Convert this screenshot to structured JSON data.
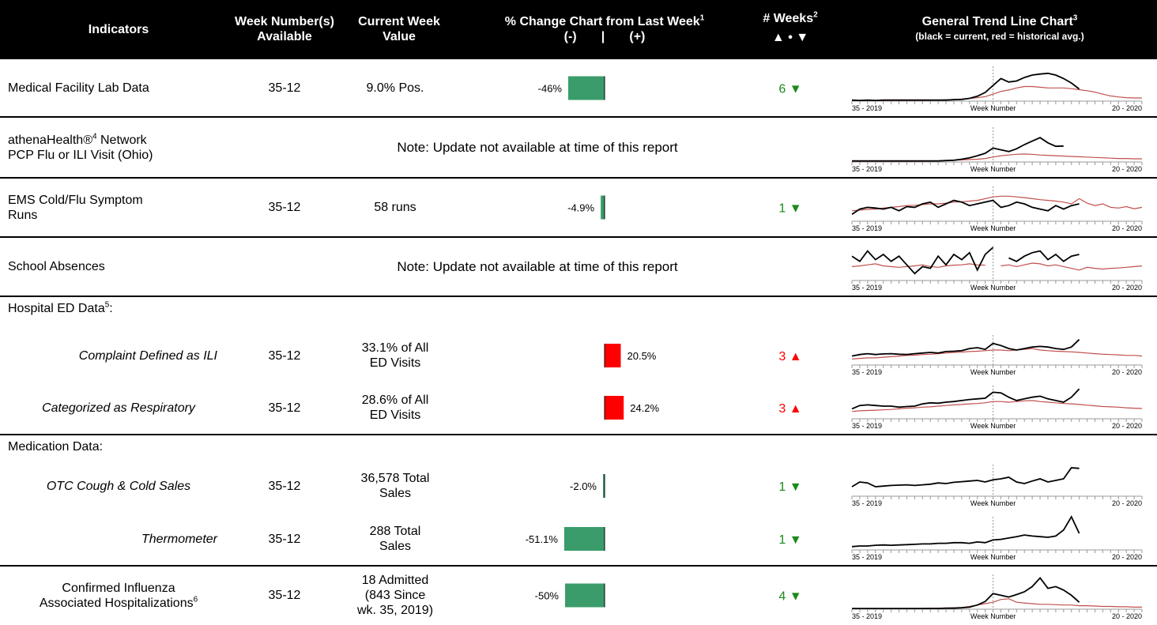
{
  "header": {
    "indicators": "Indicators",
    "weeks": [
      "Week Number(s)",
      "Available"
    ],
    "value": [
      "Current Week",
      "Value"
    ],
    "change": {
      "title": "% Change Chart from Last Week",
      "sup": "1",
      "neg": "(-)",
      "sep": "|",
      "pos": "(+)"
    },
    "trend_weeks": {
      "title": "# Weeks",
      "sup": "2",
      "symbols": "▲ • ▼"
    },
    "trend": {
      "title": "General Trend Line Chart",
      "sup": "3",
      "subtitle": "(black = current, red = historical avg.)"
    }
  },
  "trend_axis": {
    "start": "35 - 2019",
    "mid": "Week Number",
    "end": "20 - 2020"
  },
  "rows": [
    {
      "indicator": [
        [
          "Medical Facility Lab Data"
        ]
      ],
      "align": "left",
      "weeks": "35-12",
      "value": [
        "9.0% Pos."
      ],
      "change": -46,
      "change_label": "-46%",
      "bar_color": "#3a9c6a",
      "trend_weeks": 6,
      "direction": "▼",
      "color": "#1a8a1a",
      "current": [
        3,
        2,
        3,
        2,
        3,
        3,
        3,
        3,
        3,
        3,
        3,
        3,
        3,
        4,
        5,
        8,
        14,
        25,
        45,
        65,
        55,
        58,
        68,
        75,
        78,
        80,
        75,
        65,
        52,
        35
      ],
      "historical": [
        2,
        2,
        2,
        2,
        2,
        2,
        2,
        2,
        2,
        2,
        3,
        3,
        4,
        5,
        6,
        8,
        10,
        13,
        20,
        28,
        32,
        38,
        42,
        42,
        40,
        38,
        38,
        38,
        36,
        33,
        30,
        26,
        20,
        15,
        12,
        10,
        9,
        9
      ]
    },
    {
      "indicator": [
        [
          "athenaHealth®",
          {
            "sup": "4"
          },
          " Network"
        ],
        [
          "PCP Flu or ILI Visit (Ohio)"
        ]
      ],
      "align": "left",
      "note": "Note: Update not available at time of this report",
      "current": [
        3,
        3,
        3,
        3,
        3,
        3,
        3,
        3,
        3,
        3,
        3,
        3,
        4,
        5,
        8,
        12,
        18,
        25,
        40,
        35,
        30,
        38,
        50,
        60,
        70,
        55,
        45,
        46
      ],
      "historical": [
        2,
        2,
        2,
        2,
        2,
        2,
        2,
        2,
        2,
        2,
        3,
        3,
        4,
        5,
        6,
        7,
        8,
        10,
        14,
        18,
        20,
        22,
        23,
        22,
        20,
        19,
        18,
        17,
        16,
        15,
        14,
        13,
        12,
        11,
        10,
        10,
        9,
        9
      ]
    },
    {
      "indicator": [
        [
          "EMS Cold/Flu Symptom"
        ],
        [
          "Runs"
        ]
      ],
      "align": "left",
      "weeks": "35-12",
      "value": [
        "58 runs"
      ],
      "change": -4.9,
      "change_label": "-4.9%",
      "bar_color": "#3a9c6a",
      "trend_weeks": 1,
      "direction": "▼",
      "color": "#1a8a1a",
      "current": [
        20,
        35,
        40,
        38,
        35,
        40,
        30,
        42,
        40,
        50,
        55,
        40,
        50,
        60,
        55,
        45,
        50,
        55,
        60,
        40,
        45,
        55,
        50,
        40,
        35,
        30,
        45,
        35,
        45,
        50
      ],
      "historical": [
        30,
        32,
        34,
        35,
        38,
        40,
        42,
        45,
        46,
        48,
        50,
        50,
        52,
        55,
        56,
        58,
        60,
        65,
        70,
        72,
        72,
        70,
        68,
        65,
        62,
        60,
        58,
        55,
        50,
        65,
        52,
        45,
        50,
        40,
        38,
        42,
        36,
        40
      ]
    },
    {
      "indicator": [
        [
          "School Absences"
        ]
      ],
      "align": "left",
      "note": "Note: Update not available at time of this report",
      "current": [
        70,
        55,
        85,
        60,
        75,
        55,
        70,
        45,
        20,
        40,
        35,
        70,
        45,
        75,
        60,
        80,
        30,
        75,
        95,
        null,
        65,
        55,
        70,
        80,
        85,
        60,
        75,
        55,
        70,
        75
      ],
      "historical": [
        40,
        42,
        45,
        48,
        42,
        40,
        38,
        40,
        42,
        45,
        40,
        38,
        42,
        44,
        45,
        48,
        45,
        44,
        null,
        42,
        45,
        40,
        45,
        50,
        48,
        42,
        45,
        40,
        35,
        30,
        38,
        35,
        33,
        35,
        36,
        38,
        40,
        42
      ]
    },
    {
      "section": true,
      "indicator": [
        [
          "Hospital ED Data",
          {
            "sup": "5"
          },
          ":"
        ]
      ],
      "align": "left"
    },
    {
      "indicator": [
        [
          "Complaint Defined as ILI"
        ]
      ],
      "align": "right",
      "italic": true,
      "weeks": "35-12",
      "value": [
        "33.1% of All",
        "ED Visits"
      ],
      "change": 20.5,
      "change_label": "20.5%",
      "bar_color": "#ff0000",
      "trend_weeks": 3,
      "direction": "▲",
      "color": "#ff0000",
      "current": [
        30,
        35,
        38,
        35,
        37,
        38,
        36,
        35,
        38,
        40,
        42,
        40,
        45,
        46,
        48,
        55,
        58,
        52,
        72,
        65,
        55,
        50,
        55,
        60,
        62,
        60,
        55,
        52,
        60,
        85
      ],
      "historical": [
        20,
        22,
        24,
        24,
        26,
        28,
        30,
        32,
        33,
        35,
        36,
        38,
        40,
        42,
        43,
        45,
        46,
        48,
        50,
        50,
        48,
        50,
        52,
        55,
        50,
        48,
        46,
        45,
        44,
        42,
        40,
        38,
        36,
        35,
        34,
        32,
        32,
        30
      ]
    },
    {
      "indicator": [
        [
          "Categorized as Respiratory"
        ]
      ],
      "align": "center",
      "italic": true,
      "weeks": "35-12",
      "value": [
        "28.6% of All",
        "ED Visits"
      ],
      "change": 24.2,
      "change_label": "24.2%",
      "bar_color": "#ff0000",
      "trend_weeks": 3,
      "direction": "▲",
      "color": "#ff0000",
      "current": [
        30,
        40,
        42,
        40,
        38,
        38,
        35,
        37,
        38,
        45,
        48,
        47,
        50,
        52,
        55,
        58,
        60,
        62,
        80,
        78,
        65,
        55,
        60,
        65,
        68,
        60,
        55,
        50,
        65,
        90
      ],
      "historical": [
        22,
        24,
        25,
        26,
        27,
        28,
        30,
        32,
        33,
        35,
        36,
        38,
        40,
        42,
        43,
        45,
        46,
        48,
        52,
        52,
        50,
        52,
        54,
        55,
        52,
        50,
        48,
        46,
        45,
        43,
        41,
        39,
        37,
        36,
        35,
        33,
        32,
        31
      ]
    },
    {
      "section": true,
      "indicator": [
        [
          "Medication Data:"
        ]
      ],
      "align": "left"
    },
    {
      "indicator": [
        [
          "OTC Cough & Cold Sales"
        ]
      ],
      "align": "center",
      "italic": true,
      "weeks": "35-12",
      "value": [
        "36,578 Total",
        "Sales"
      ],
      "change": -2.0,
      "change_label": "-2.0%",
      "bar_color": "#3a9c6a",
      "trend_weeks": 1,
      "direction": "▼",
      "color": "#1a8a1a",
      "current": [
        30,
        45,
        42,
        30,
        32,
        34,
        35,
        36,
        34,
        36,
        38,
        42,
        40,
        44,
        46,
        48,
        50,
        45,
        52,
        55,
        60,
        45,
        40,
        48,
        55,
        45,
        50,
        55,
        90,
        88
      ]
    },
    {
      "indicator": [
        [
          "Thermometer"
        ]
      ],
      "align": "right",
      "italic": true,
      "weeks": "35-12",
      "value": [
        "288 Total",
        "Sales"
      ],
      "change": -51.1,
      "change_label": "-51.1%",
      "bar_color": "#3a9c6a",
      "trend_weeks": 1,
      "direction": "▼",
      "color": "#1a8a1a",
      "current": [
        10,
        12,
        12,
        14,
        15,
        14,
        15,
        16,
        17,
        18,
        18,
        20,
        20,
        22,
        22,
        20,
        24,
        22,
        30,
        32,
        36,
        40,
        45,
        42,
        40,
        38,
        42,
        60,
        100,
        50
      ]
    },
    {
      "indicator": [
        [
          "Confirmed Influenza"
        ],
        [
          "Associated Hospitalizations",
          {
            "sup": "6"
          }
        ]
      ],
      "align": "center",
      "weeks": "35-12",
      "value": [
        "18 Admitted",
        "(843 Since",
        "wk. 35, 2019)"
      ],
      "change": -50,
      "change_label": "-50%",
      "bar_color": "#3a9c6a",
      "trend_weeks": 4,
      "direction": "▼",
      "color": "#1a8a1a",
      "current": [
        2,
        2,
        2,
        2,
        2,
        2,
        2,
        2,
        2,
        2,
        2,
        2,
        3,
        3,
        4,
        6,
        12,
        22,
        45,
        40,
        35,
        42,
        50,
        65,
        90,
        60,
        65,
        55,
        40,
        20
      ],
      "historical": [
        2,
        2,
        2,
        2,
        2,
        2,
        2,
        2,
        2,
        2,
        3,
        3,
        3,
        4,
        5,
        8,
        12,
        16,
        20,
        28,
        30,
        20,
        18,
        16,
        14,
        14,
        13,
        12,
        12,
        10,
        10,
        9,
        8,
        8,
        7,
        7,
        6,
        6
      ]
    }
  ]
}
